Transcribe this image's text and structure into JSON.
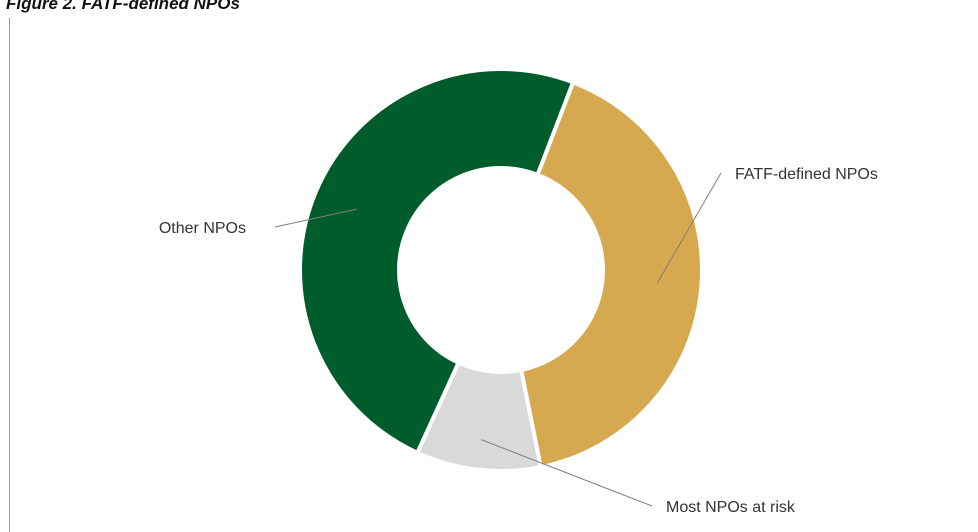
{
  "figure": {
    "title": "Figure 2. FATF-defined NPOs"
  },
  "chart_data": {
    "type": "pie",
    "variant": "donut",
    "labels": [
      "FATF-defined NPOs",
      "Most NPOs at risk",
      "Other NPOs"
    ],
    "values": [
      41,
      10,
      49
    ],
    "colors": [
      "#D6A84F",
      "#D9D9D9",
      "#005C2B"
    ],
    "legend": "none"
  }
}
